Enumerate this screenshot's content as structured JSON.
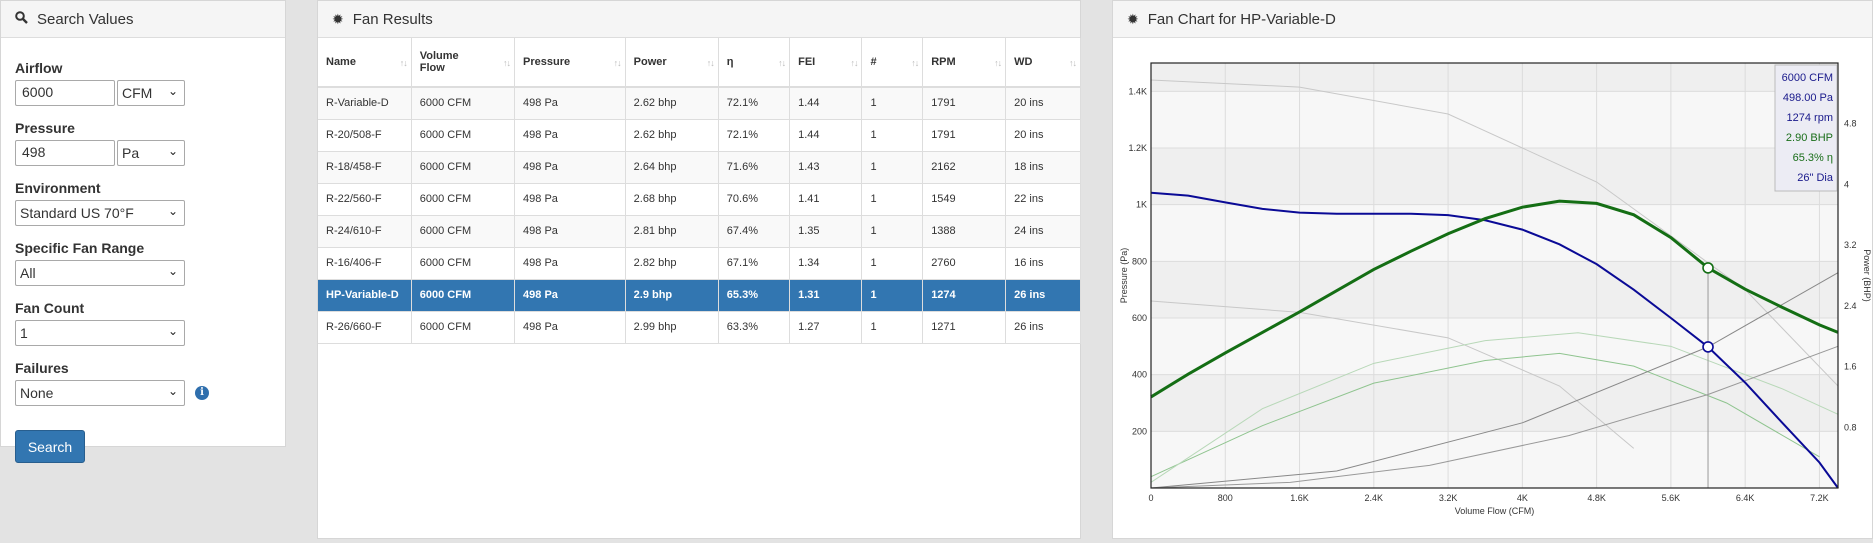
{
  "search": {
    "title": "Search Values",
    "airflow_label": "Airflow",
    "airflow_value": "6000",
    "airflow_unit": "CFM",
    "pressure_label": "Pressure",
    "pressure_value": "498",
    "pressure_unit": "Pa",
    "environment_label": "Environment",
    "environment_value": "Standard US 70°F",
    "range_label": "Specific Fan Range",
    "range_value": "All",
    "count_label": "Fan Count",
    "count_value": "1",
    "failures_label": "Failures",
    "failures_value": "None",
    "button_label": "Search"
  },
  "results": {
    "title": "Fan Results",
    "columns": [
      "Name",
      "Volume Flow",
      "Pressure",
      "Power",
      "η",
      "FEI",
      "#",
      "RPM",
      "WD"
    ],
    "rows": [
      [
        "R-Variable-D",
        "6000 CFM",
        "498 Pa",
        "2.62 bhp",
        "72.1%",
        "1.44",
        "1",
        "1791",
        "20 ins"
      ],
      [
        "R-20/508-F",
        "6000 CFM",
        "498 Pa",
        "2.62 bhp",
        "72.1%",
        "1.44",
        "1",
        "1791",
        "20 ins"
      ],
      [
        "R-18/458-F",
        "6000 CFM",
        "498 Pa",
        "2.64 bhp",
        "71.6%",
        "1.43",
        "1",
        "2162",
        "18 ins"
      ],
      [
        "R-22/560-F",
        "6000 CFM",
        "498 Pa",
        "2.68 bhp",
        "70.6%",
        "1.41",
        "1",
        "1549",
        "22 ins"
      ],
      [
        "R-24/610-F",
        "6000 CFM",
        "498 Pa",
        "2.81 bhp",
        "67.4%",
        "1.35",
        "1",
        "1388",
        "24 ins"
      ],
      [
        "R-16/406-F",
        "6000 CFM",
        "498 Pa",
        "2.82 bhp",
        "67.1%",
        "1.34",
        "1",
        "2760",
        "16 ins"
      ],
      [
        "HP-Variable-D",
        "6000 CFM",
        "498 Pa",
        "2.9 bhp",
        "65.3%",
        "1.31",
        "1",
        "1274",
        "26 ins"
      ],
      [
        "R-26/660-F",
        "6000 CFM",
        "498 Pa",
        "2.99 bhp",
        "63.3%",
        "1.27",
        "1",
        "1271",
        "26 ins"
      ]
    ],
    "selected_index": 6
  },
  "chart": {
    "title": "Fan Chart for HP-Variable-D",
    "info_lines": [
      {
        "text": "6000 CFM",
        "color": "#1a1a8c"
      },
      {
        "text": "498.00 Pa",
        "color": "#1a1a8c"
      },
      {
        "text": "1274 rpm",
        "color": "#1a1a8c"
      },
      {
        "text": "2.90 BHP",
        "color": "#1a6e1a"
      },
      {
        "text": "65.3% η",
        "color": "#1a6e1a"
      },
      {
        "text": "26\" Dia",
        "color": "#1a1a8c"
      }
    ]
  },
  "chart_data": {
    "type": "line",
    "xlabel": "Volume Flow (CFM)",
    "ylabel": "Pressure (Pa)",
    "y2label": "Power (BHP)",
    "xlim": [
      0,
      7400
    ],
    "ylim": [
      0,
      1500
    ],
    "y2lim": [
      0,
      5.6
    ],
    "x_ticks": [
      0,
      800,
      1600,
      2400,
      3200,
      4000,
      4800,
      5600,
      6400,
      7200
    ],
    "x_tick_labels": [
      "0",
      "800",
      "1.6K",
      "2.4K",
      "3.2K",
      "4K",
      "4.8K",
      "5.6K",
      "6.4K",
      "7.2K"
    ],
    "y_ticks": [
      200,
      400,
      600,
      800,
      1000,
      1200,
      1400
    ],
    "y_tick_labels": [
      "200",
      "400",
      "600",
      "800",
      "1K",
      "1.2K",
      "1.4K"
    ],
    "y2_ticks": [
      0.8,
      1.6,
      2.4,
      3.2,
      4,
      4.8
    ],
    "y2_tick_labels": [
      "0.8",
      "1.6",
      "2.4",
      "3.2",
      "4",
      "4.8"
    ],
    "grid": true,
    "operating_point": {
      "x": 6000,
      "pressure": 498,
      "power": 2.9
    },
    "series": [
      {
        "role": "pressure",
        "color": "#0a0a96",
        "x": [
          0,
          400,
          800,
          1200,
          1600,
          2000,
          2400,
          2800,
          3200,
          3600,
          4000,
          4400,
          4800,
          5200,
          5600,
          6000,
          6400,
          6800,
          7200,
          7400
        ],
        "y": [
          1042,
          1032,
          1008,
          985,
          972,
          968,
          968,
          968,
          963,
          945,
          912,
          860,
          790,
          700,
          600,
          498,
          372,
          230,
          90,
          0
        ]
      },
      {
        "role": "power",
        "color": "#146e14",
        "x": [
          0,
          400,
          800,
          1200,
          1600,
          2000,
          2400,
          2800,
          3200,
          3600,
          4000,
          4400,
          4800,
          5200,
          5600,
          6000,
          6400,
          6800,
          7200,
          7400
        ],
        "y": [
          1.2,
          1.5,
          1.78,
          2.05,
          2.32,
          2.6,
          2.88,
          3.12,
          3.35,
          3.55,
          3.7,
          3.78,
          3.75,
          3.6,
          3.3,
          2.9,
          2.62,
          2.38,
          2.15,
          2.05
        ]
      }
    ]
  }
}
